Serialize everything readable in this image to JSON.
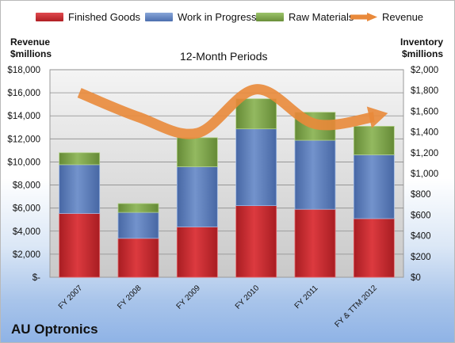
{
  "chart_data": {
    "type": "bar",
    "subtitle": "12-Month Periods",
    "company": "AU Optronics",
    "left_axis_title": [
      "Revenue",
      "$millions"
    ],
    "right_axis_title": [
      "Inventory",
      "$millions"
    ],
    "categories": [
      "FY 2007",
      "FY 2008",
      "FY 2009",
      "FY 2010",
      "FY 2011",
      "FY & TTM 2012"
    ],
    "stacked": true,
    "series": [
      {
        "name": "Finished Goods",
        "axis": "right",
        "color": "#c0282d",
        "values": [
          615,
          375,
          485,
          690,
          655,
          565
        ]
      },
      {
        "name": "Work in Progress",
        "axis": "right",
        "color": "#5b7fbd",
        "values": [
          470,
          250,
          580,
          740,
          665,
          615
        ]
      },
      {
        "name": "Raw Materials",
        "axis": "right",
        "color": "#7ca24a",
        "values": [
          115,
          85,
          280,
          290,
          270,
          275
        ]
      }
    ],
    "line_series": {
      "name": "Revenue",
      "axis": "left",
      "color": "#e9893a",
      "values": [
        16000,
        13900,
        12500,
        16300,
        13300,
        13900
      ]
    },
    "left_axis": {
      "min": 0,
      "max": 18000,
      "step": 2000,
      "ticks": [
        "$-",
        "$2,000",
        "$4,000",
        "$6,000",
        "$8,000",
        "$10,000",
        "$12,000",
        "$14,000",
        "$16,000",
        "$18,000"
      ]
    },
    "right_axis": {
      "min": 0,
      "max": 2000,
      "step": 200,
      "ticks": [
        "$0",
        "$200",
        "$400",
        "$600",
        "$800",
        "$1,000",
        "$1,200",
        "$1,400",
        "$1,600",
        "$1,800",
        "$2,000"
      ]
    },
    "grid": true,
    "legend_position": "top"
  }
}
